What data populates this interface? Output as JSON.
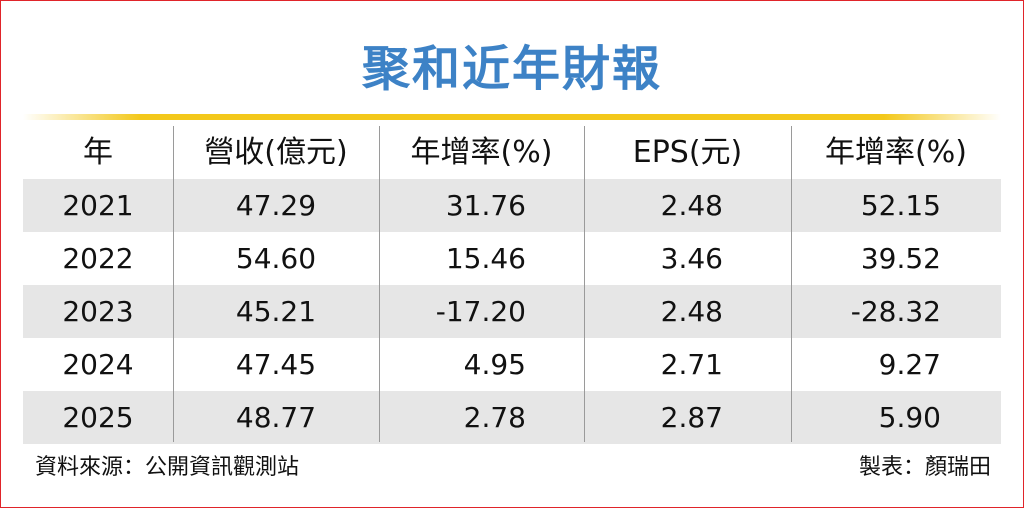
{
  "header": {
    "title": "聚和近年財報"
  },
  "table": {
    "columns": [
      "年",
      "營收(億元)",
      "年增率(%)",
      "EPS(元)",
      "年增率(%)"
    ],
    "rows": [
      [
        "2021",
        "47.29",
        "31.76",
        "2.48",
        "52.15"
      ],
      [
        "2022",
        "54.60",
        "15.46",
        "3.46",
        "39.52"
      ],
      [
        "2023",
        "45.21",
        "-17.20",
        "2.48",
        "-28.32"
      ],
      [
        "2024",
        "47.45",
        "4.95",
        "2.71",
        "9.27"
      ],
      [
        "2025",
        "48.77",
        "2.78",
        "2.87",
        "5.90"
      ]
    ]
  },
  "footer": {
    "source": "資料來源：公開資訊觀測站",
    "author": "製表：顏瑞田"
  }
}
